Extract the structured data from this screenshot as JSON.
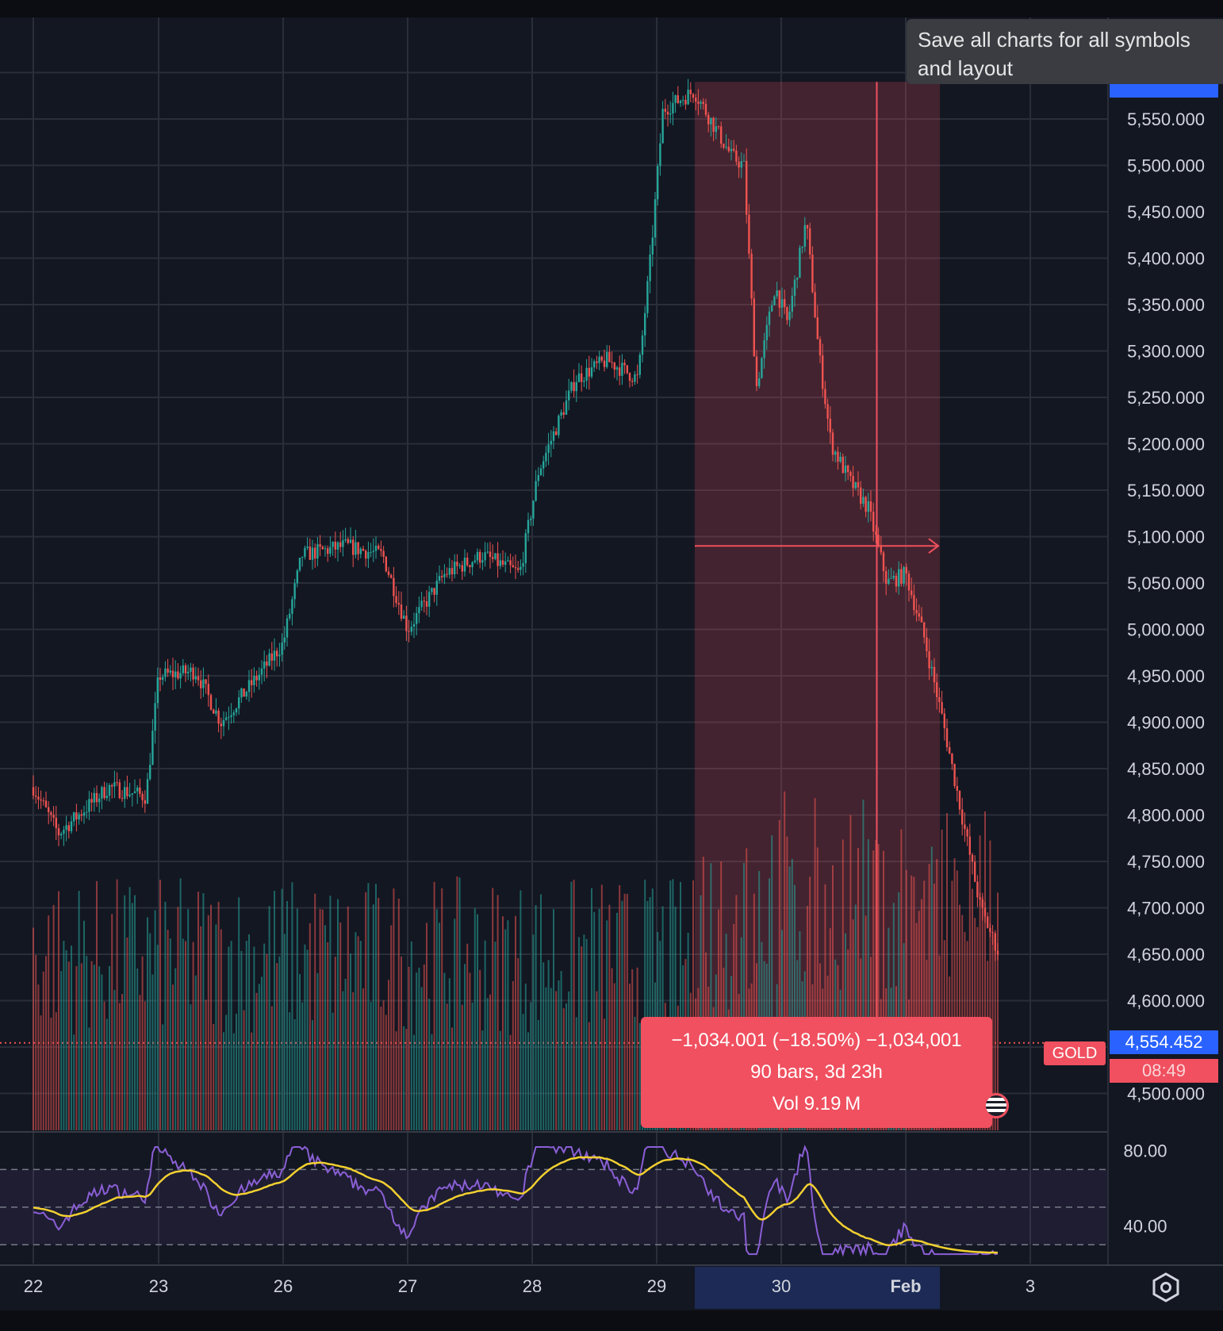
{
  "tooltip": {
    "text": "Save all charts for all symbols and layout"
  },
  "symbol": "GOLD",
  "current_price": "4,554.452",
  "countdown": "08:49",
  "measure": {
    "line1": "−1,034.001 (−18.50%) −1,034,001",
    "line2": "90 bars, 3d 23h",
    "line3": "Vol 9.19 M"
  },
  "colors": {
    "background": "#131722",
    "grid": "#2a2e39",
    "up": "#26a69a",
    "down": "#ef5350",
    "measure_fill": "#f0505f",
    "rsi_line": "#8b5fd6",
    "rsi_ma": "#f2d030",
    "axis_highlight": "#2962ff",
    "date_highlight": "#1c2a55"
  },
  "chart_data": {
    "type": "candlestick",
    "price_axis": {
      "ticks": [
        "5,550.000",
        "5,500.000",
        "5,450.000",
        "5,400.000",
        "5,350.000",
        "5,300.000",
        "5,250.000",
        "5,200.000",
        "5,150.000",
        "5,100.000",
        "5,050.000",
        "5,000.000",
        "4,950.000",
        "4,900.000",
        "4,850.000",
        "4,800.000",
        "4,750.000",
        "4,700.000",
        "4,650.000",
        "4,600.000",
        "4,500.000"
      ],
      "ylim": [
        4500,
        5590
      ]
    },
    "time_axis": {
      "ticks": [
        "22",
        "23",
        "26",
        "27",
        "28",
        "29",
        "30",
        "Feb",
        "3"
      ],
      "highlight_range": [
        "29",
        "Feb"
      ]
    },
    "price_path": [
      {
        "x": 21.9,
        "close": 4830
      },
      {
        "x": 22.2,
        "close": 4780
      },
      {
        "x": 22.6,
        "close": 4830
      },
      {
        "x": 22.9,
        "close": 4820
      },
      {
        "x": 23.0,
        "close": 4950
      },
      {
        "x": 23.3,
        "close": 4955
      },
      {
        "x": 23.5,
        "close": 4900
      },
      {
        "x": 23.8,
        "close": 4950
      },
      {
        "x": 24.0,
        "close": 4985
      },
      {
        "x": 24.15,
        "close": 5080
      },
      {
        "x": 24.5,
        "close": 5090
      },
      {
        "x": 24.8,
        "close": 5080
      },
      {
        "x": 25.0,
        "close": 5000
      },
      {
        "x": 25.3,
        "close": 5060
      },
      {
        "x": 25.6,
        "close": 5080
      },
      {
        "x": 25.9,
        "close": 5060
      },
      {
        "x": 26.05,
        "close": 5170
      },
      {
        "x": 26.35,
        "close": 5270
      },
      {
        "x": 26.6,
        "close": 5290
      },
      {
        "x": 26.85,
        "close": 5270
      },
      {
        "x": 26.95,
        "close": 5400
      },
      {
        "x": 27.05,
        "close": 5560
      },
      {
        "x": 27.3,
        "close": 5580
      },
      {
        "x": 27.6,
        "close": 5510
      },
      {
        "x": 27.7,
        "close": 5500
      },
      {
        "x": 27.8,
        "close": 5260
      },
      {
        "x": 27.95,
        "close": 5370
      },
      {
        "x": 28.05,
        "close": 5330
      },
      {
        "x": 28.2,
        "close": 5440
      },
      {
        "x": 28.3,
        "close": 5300
      },
      {
        "x": 28.4,
        "close": 5200
      },
      {
        "x": 28.55,
        "close": 5160
      },
      {
        "x": 28.7,
        "close": 5130
      },
      {
        "x": 28.85,
        "close": 5050
      },
      {
        "x": 29.0,
        "close": 5060
      },
      {
        "x": 29.15,
        "close": 4990
      },
      {
        "x": 29.3,
        "close": 4900
      },
      {
        "x": 29.45,
        "close": 4800
      },
      {
        "x": 29.6,
        "close": 4700
      },
      {
        "x": 29.75,
        "close": 4650
      }
    ],
    "measurement": {
      "change": -1034.001,
      "change_percent": -18.5,
      "bars": 90,
      "duration": "3d 23h",
      "volume": "9.19 M",
      "start_price": 5590,
      "end_price": 4554.452
    },
    "rsi": {
      "axis_ticks": [
        "80.00",
        "40.00"
      ],
      "ylim": [
        20,
        90
      ],
      "bands": [
        70,
        50,
        30
      ]
    }
  }
}
